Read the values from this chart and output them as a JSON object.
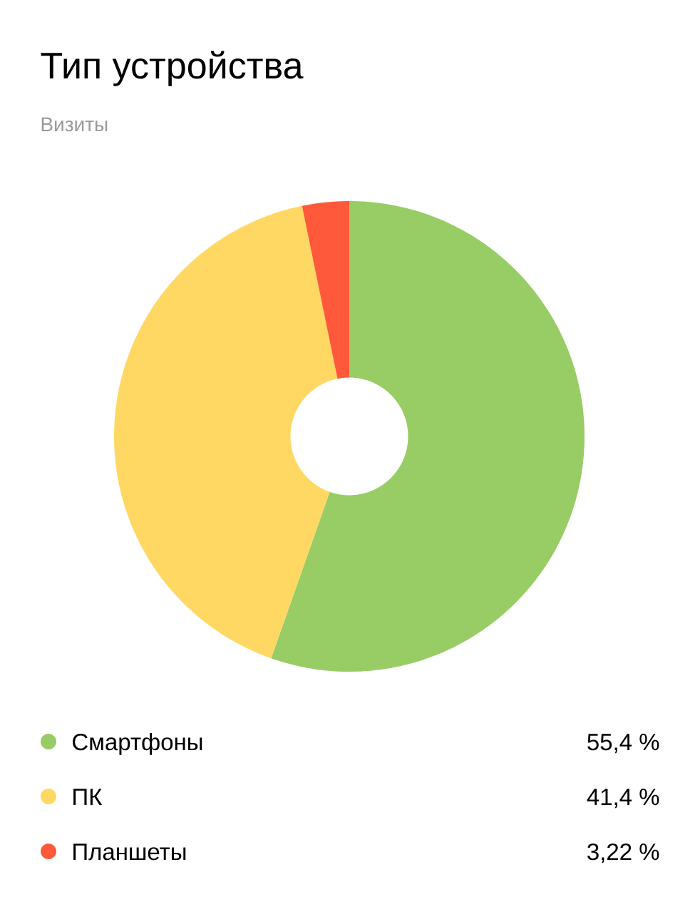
{
  "chart_data": {
    "type": "donut",
    "title": "Тип устройства",
    "subtitle": "Визиты",
    "categories": [
      "Смартфоны",
      "ПК",
      "Планшеты"
    ],
    "values": [
      55.4,
      41.4,
      3.22
    ],
    "value_labels": [
      "55,4 %",
      "41,4 %",
      "3,22 %"
    ],
    "colors": [
      "#98cc64",
      "#ffd863",
      "#ff593c"
    ],
    "legend": "bottom"
  }
}
